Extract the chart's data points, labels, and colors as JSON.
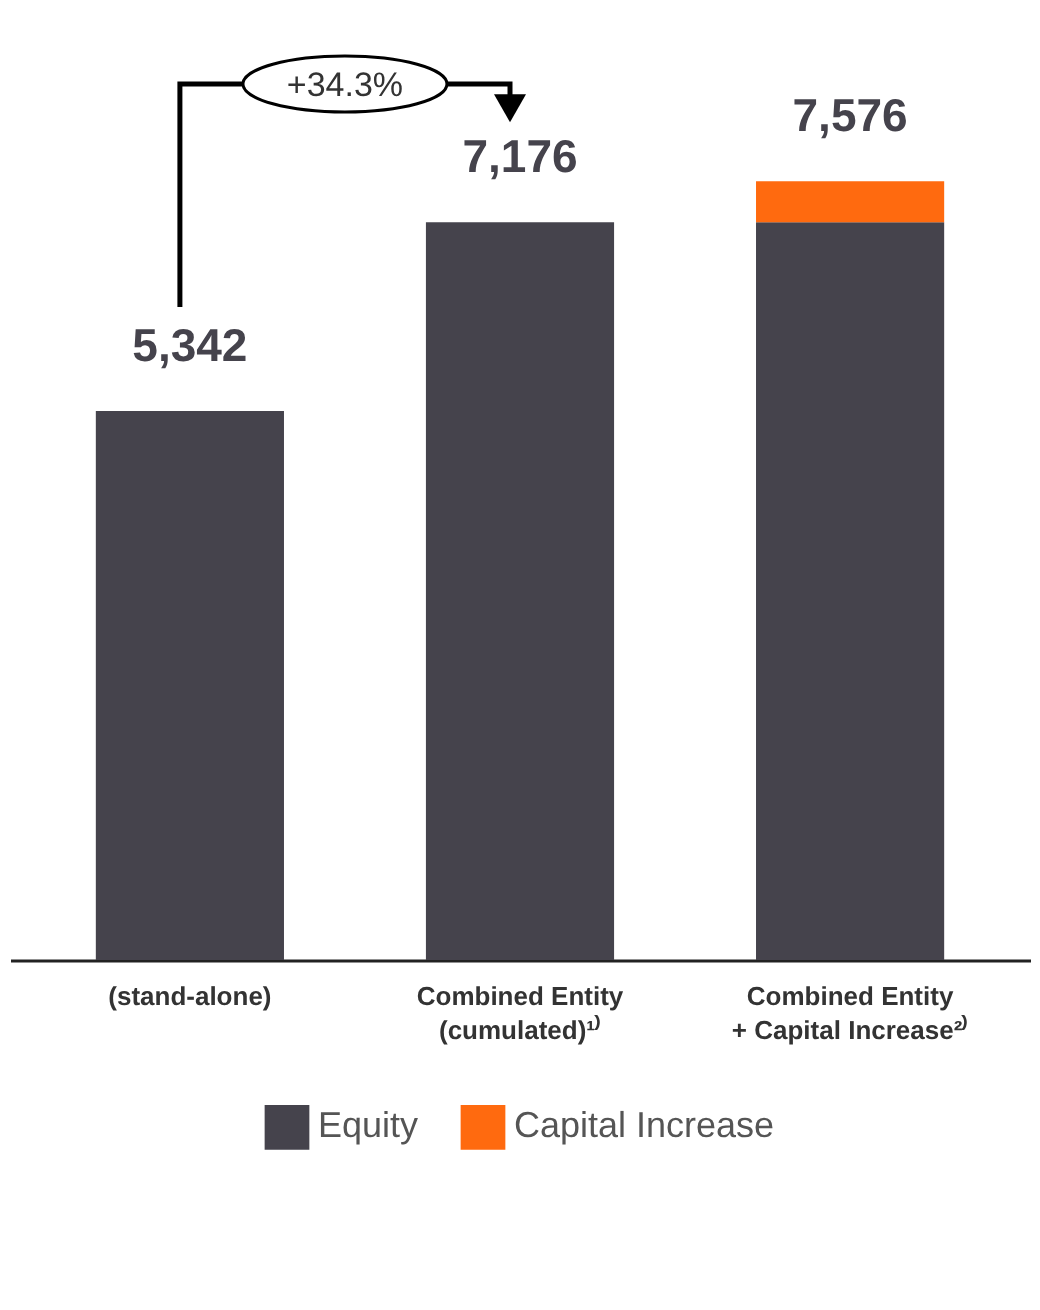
{
  "chart_data": {
    "type": "bar",
    "stacked": true,
    "categories": [
      "(stand-alone)",
      "Combined Entity\n(cumulated)¹⁾",
      "Combined Entity\n+ Capital Increase²⁾"
    ],
    "series": [
      {
        "name": "Equity",
        "color": "#45434c",
        "values": [
          5342,
          7176,
          7176
        ],
        "value_labels": [
          "5,342",
          "7,176",
          null
        ]
      },
      {
        "name": "Capital Increase",
        "color": "#ff6a0f",
        "values": [
          null,
          null,
          400
        ]
      }
    ],
    "totals": [
      null,
      null,
      "7,576"
    ],
    "annotations": [
      "+34.3%"
    ],
    "legend": "bottom"
  }
}
